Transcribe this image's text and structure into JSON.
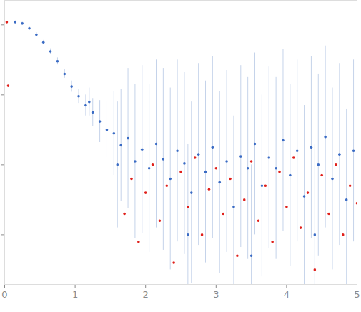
{
  "chart_data": {
    "type": "scatter",
    "xlim": [
      0,
      5
    ],
    "xticks": [
      0,
      1,
      2,
      3,
      4,
      5
    ],
    "ylim": [
      -3.71,
      0.35
    ],
    "yticks": [
      -3,
      -2,
      -1,
      0
    ],
    "tick_labels": "x",
    "grid": false,
    "marker": "circle",
    "series": [
      {
        "color": "#3a6bc4",
        "x": [
          0.15,
          0.25,
          0.35,
          0.45,
          0.55,
          0.65,
          0.75,
          0.85,
          0.95,
          1.05,
          1.15,
          1.2,
          1.25,
          1.35,
          1.45,
          1.55,
          1.6,
          1.65,
          1.75,
          1.85,
          1.95,
          2.05,
          2.15,
          2.25,
          2.35,
          2.45,
          2.55,
          2.6,
          2.65,
          2.75,
          2.85,
          2.95,
          3.05,
          3.15,
          3.25,
          3.35,
          3.45,
          3.5,
          3.55,
          3.65,
          3.75,
          3.85,
          3.95,
          4.05,
          4.15,
          4.25,
          4.35,
          4.4,
          4.45,
          4.55,
          4.65,
          4.75,
          4.85,
          4.95
        ],
        "values": [
          0.04,
          0.02,
          -0.05,
          -0.14,
          -0.25,
          -0.38,
          -0.52,
          -0.7,
          -0.88,
          -1.02,
          -1.15,
          -1.1,
          -1.25,
          -1.38,
          -1.5,
          -1.55,
          -2.0,
          -1.72,
          -1.62,
          -1.95,
          -1.78,
          -2.05,
          -1.7,
          -1.92,
          -2.2,
          -1.8,
          -1.98,
          -3.0,
          -2.4,
          -1.85,
          -2.1,
          -1.75,
          -2.25,
          -1.95,
          -2.6,
          -1.88,
          -2.05,
          -3.3,
          -1.7,
          -2.3,
          -1.9,
          -2.05,
          -1.65,
          -2.15,
          -1.8,
          -2.45,
          -1.75,
          -3.0,
          -2.0,
          -1.6,
          -2.2,
          -1.85,
          -2.5,
          -1.8
        ],
        "errors": [
          0.02,
          0.02,
          0.02,
          0.03,
          0.03,
          0.04,
          0.05,
          0.06,
          0.08,
          0.1,
          0.15,
          0.2,
          0.2,
          0.3,
          0.4,
          0.6,
          0.9,
          0.8,
          1.0,
          1.1,
          1.2,
          1.2,
          1.2,
          1.3,
          1.3,
          1.3,
          1.3,
          1.3,
          1.3,
          1.3,
          1.3,
          1.3,
          1.3,
          1.3,
          1.3,
          1.3,
          1.3,
          1.3,
          1.3,
          1.3,
          1.3,
          1.3,
          1.3,
          1.3,
          1.3,
          1.3,
          1.3,
          1.3,
          1.3,
          1.3,
          1.3,
          1.3,
          1.3,
          1.3
        ]
      },
      {
        "color": "#e0201b",
        "x": [
          0.03,
          0.05,
          1.7,
          1.8,
          1.9,
          2.0,
          2.1,
          2.2,
          2.3,
          2.4,
          2.5,
          2.6,
          2.7,
          2.8,
          2.9,
          3.0,
          3.1,
          3.2,
          3.3,
          3.4,
          3.5,
          3.6,
          3.7,
          3.8,
          3.9,
          4.0,
          4.1,
          4.2,
          4.3,
          4.4,
          4.5,
          4.6,
          4.7,
          4.8,
          4.9,
          5.0
        ],
        "values": [
          0.04,
          -0.87,
          -2.7,
          -2.2,
          -3.1,
          -2.4,
          -2.0,
          -2.8,
          -2.3,
          -3.4,
          -2.1,
          -2.6,
          -1.9,
          -3.0,
          -2.35,
          -2.05,
          -2.7,
          -2.2,
          -3.3,
          -2.5,
          -1.95,
          -2.8,
          -2.3,
          -3.1,
          -2.1,
          -2.6,
          -1.9,
          -2.9,
          -2.4,
          -3.5,
          -2.15,
          -2.7,
          -2.0,
          -3.0,
          -2.3,
          -2.55
        ]
      }
    ]
  }
}
